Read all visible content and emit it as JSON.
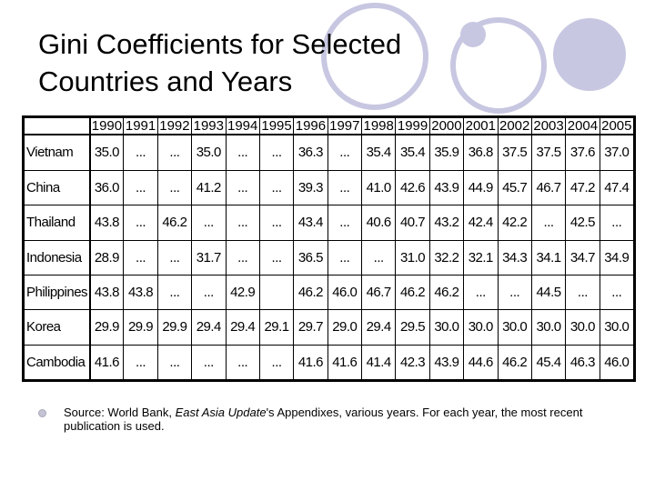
{
  "slide": {
    "title_line1": "Gini Coefficients for Selected",
    "title_line2": "Countries and Years",
    "decoration_color": "#c7c7e2"
  },
  "table": {
    "years": [
      "1990",
      "1991",
      "1992",
      "1993",
      "1994",
      "1995",
      "1996",
      "1997",
      "1998",
      "1999",
      "2000",
      "2001",
      "2002",
      "2003",
      "2004",
      "2005"
    ],
    "rows": [
      {
        "country": "Vietnam",
        "values": [
          "35.0",
          "...",
          "...",
          "35.0",
          "...",
          "...",
          "36.3",
          "...",
          "35.4",
          "35.4",
          "35.9",
          "36.8",
          "37.5",
          "37.5",
          "37.6",
          "37.0"
        ]
      },
      {
        "country": "China",
        "values": [
          "36.0",
          "...",
          "...",
          "41.2",
          "...",
          "...",
          "39.3",
          "...",
          "41.0",
          "42.6",
          "43.9",
          "44.9",
          "45.7",
          "46.7",
          "47.2",
          "47.4"
        ]
      },
      {
        "country": "Thailand",
        "values": [
          "43.8",
          "...",
          "46.2",
          "...",
          "...",
          "...",
          "43.4",
          "...",
          "40.6",
          "40.7",
          "43.2",
          "42.4",
          "42.2",
          "...",
          "42.5",
          "..."
        ]
      },
      {
        "country": "Indonesia",
        "values": [
          "28.9",
          "...",
          "...",
          "31.7",
          "...",
          "...",
          "36.5",
          "...",
          "...",
          "31.0",
          "32.2",
          "32.1",
          "34.3",
          "34.1",
          "34.7",
          "34.9"
        ]
      },
      {
        "country": "Philippines",
        "values": [
          "43.8",
          "43.8",
          "...",
          "...",
          "42.9",
          "",
          "46.2",
          "46.0",
          "46.7",
          "46.2",
          "46.2",
          "...",
          "...",
          "44.5",
          "...",
          "..."
        ]
      },
      {
        "country": "Korea",
        "values": [
          "29.9",
          "29.9",
          "29.9",
          "29.4",
          "29.4",
          "29.1",
          "29.7",
          "29.0",
          "29.4",
          "29.5",
          "30.0",
          "30.0",
          "30.0",
          "30.0",
          "30.0",
          "30.0"
        ]
      },
      {
        "country": "Cambodia",
        "values": [
          "41.6",
          "...",
          "...",
          "...",
          "...",
          "...",
          "41.6",
          "41.6",
          "41.4",
          "42.3",
          "43.9",
          "44.6",
          "46.2",
          "45.4",
          "46.3",
          "46.0"
        ]
      }
    ]
  },
  "source": {
    "prefix": "Source: World Bank, ",
    "publication": "East Asia Update",
    "suffix": "'s Appendixes, various years. For each year, the most recent publication is used."
  }
}
